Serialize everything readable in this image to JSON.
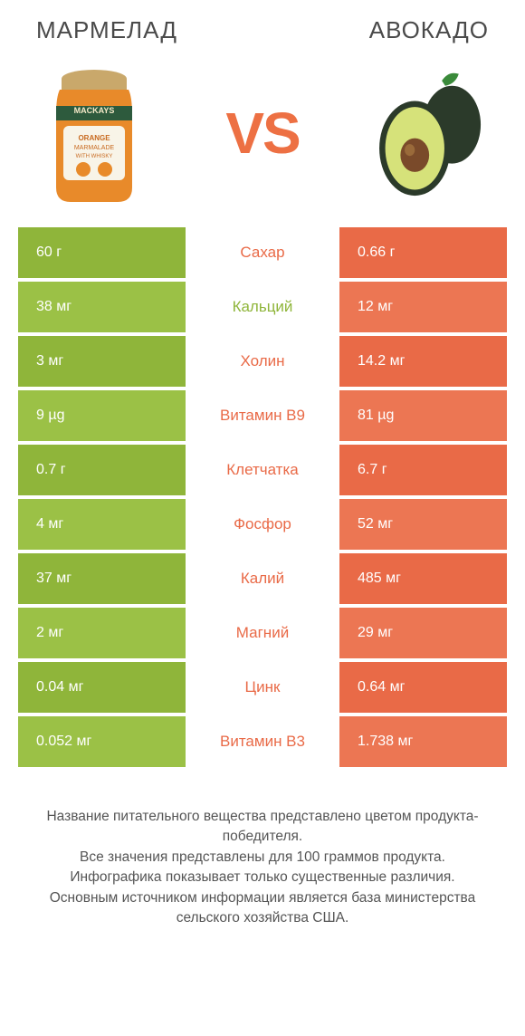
{
  "titles": {
    "left": "МАРМЕЛАД",
    "right": "АВОКАДО"
  },
  "vs": "VS",
  "colors": {
    "left_bar": "#8fb53a",
    "left_bar_alt": "#9bc146",
    "right_bar": "#e96a47",
    "right_bar_alt": "#ec7653",
    "mid_winner_left": "#8fb53a",
    "mid_winner_right": "#e96a47",
    "vs_color": "#ed7043",
    "text_white": "#ffffff",
    "footer_text": "#555555"
  },
  "rows": [
    {
      "nutrient": "Сахар",
      "left": "60 г",
      "right": "0.66 г",
      "winner": "right"
    },
    {
      "nutrient": "Кальций",
      "left": "38 мг",
      "right": "12 мг",
      "winner": "left"
    },
    {
      "nutrient": "Холин",
      "left": "3 мг",
      "right": "14.2 мг",
      "winner": "right"
    },
    {
      "nutrient": "Витамин B9",
      "left": "9 µg",
      "right": "81 µg",
      "winner": "right"
    },
    {
      "nutrient": "Клетчатка",
      "left": "0.7 г",
      "right": "6.7 г",
      "winner": "right"
    },
    {
      "nutrient": "Фосфор",
      "left": "4 мг",
      "right": "52 мг",
      "winner": "right"
    },
    {
      "nutrient": "Калий",
      "left": "37 мг",
      "right": "485 мг",
      "winner": "right"
    },
    {
      "nutrient": "Магний",
      "left": "2 мг",
      "right": "29 мг",
      "winner": "right"
    },
    {
      "nutrient": "Цинк",
      "left": "0.04 мг",
      "right": "0.64 мг",
      "winner": "right"
    },
    {
      "nutrient": "Витамин B3",
      "left": "0.052 мг",
      "right": "1.738 мг",
      "winner": "right"
    }
  ],
  "footer_lines": [
    "Название питательного вещества представлено цветом продукта-победителя.",
    "Все значения представлены для 100 граммов продукта.",
    "Инфографика показывает только существенные различия.",
    "Основным источником информации является база министерства сельского хозяйства США."
  ]
}
